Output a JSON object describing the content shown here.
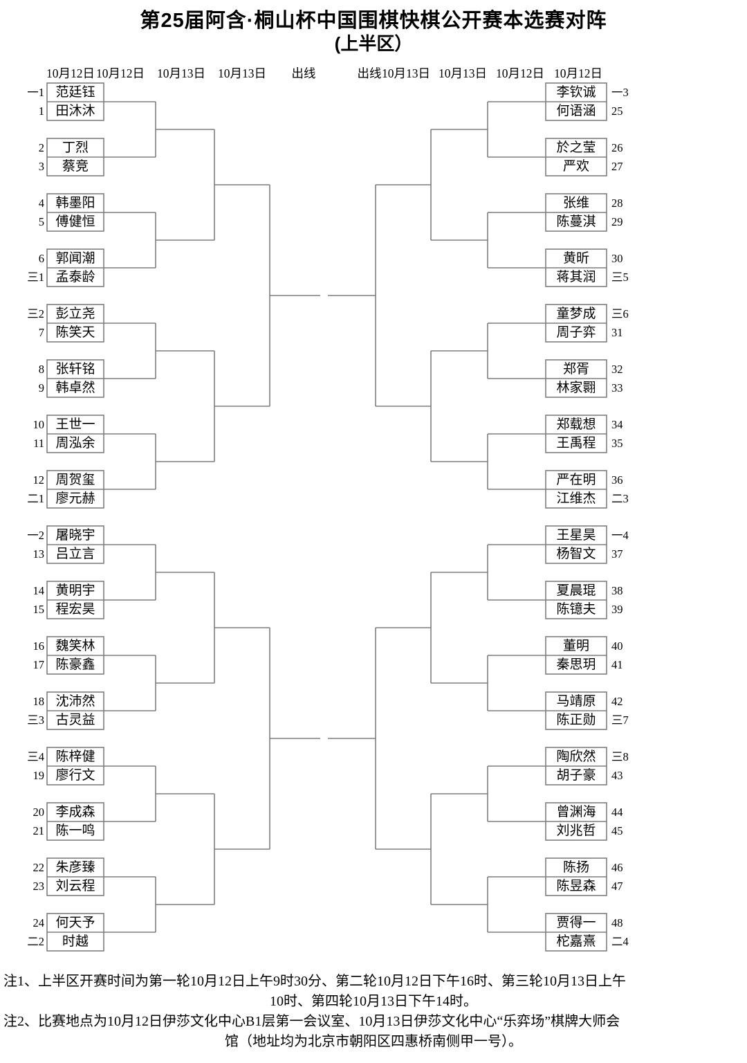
{
  "title": "第25届阿含·桐山杯中国围棋快棋公开赛本选赛对阵",
  "subtitle": "(上半区）",
  "round_headers": [
    "10月12日",
    "10月12日",
    "10月13日",
    "10月13日",
    "出线",
    "出线",
    "10月13日",
    "10月13日",
    "10月12日",
    "10月12日"
  ],
  "line_color": "#7d7d7d",
  "bracket": {
    "left": [
      {
        "players": [
          {
            "seed": "一1",
            "name": "范廷钰"
          },
          {
            "seed": "1",
            "name": "田沐沐"
          }
        ]
      },
      {
        "players": [
          {
            "seed": "2",
            "name": "丁烈"
          },
          {
            "seed": "3",
            "name": "蔡竞"
          }
        ]
      },
      {
        "players": [
          {
            "seed": "4",
            "name": "韩墨阳"
          },
          {
            "seed": "5",
            "name": "傅健恒"
          }
        ]
      },
      {
        "players": [
          {
            "seed": "6",
            "name": "郭闻潮"
          },
          {
            "seed": "三1",
            "name": "孟泰龄"
          }
        ]
      },
      {
        "players": [
          {
            "seed": "三2",
            "name": "彭立尧"
          },
          {
            "seed": "7",
            "name": "陈笑天"
          }
        ]
      },
      {
        "players": [
          {
            "seed": "8",
            "name": "张轩铭"
          },
          {
            "seed": "9",
            "name": "韩卓然"
          }
        ]
      },
      {
        "players": [
          {
            "seed": "10",
            "name": "王世一"
          },
          {
            "seed": "11",
            "name": "周泓余"
          }
        ]
      },
      {
        "players": [
          {
            "seed": "12",
            "name": "周贺玺"
          },
          {
            "seed": "二1",
            "name": "廖元赫"
          }
        ]
      },
      {
        "players": [
          {
            "seed": "一2",
            "name": "屠晓宇"
          },
          {
            "seed": "13",
            "name": "吕立言"
          }
        ]
      },
      {
        "players": [
          {
            "seed": "14",
            "name": "黄明宇"
          },
          {
            "seed": "15",
            "name": "程宏昊"
          }
        ]
      },
      {
        "players": [
          {
            "seed": "16",
            "name": "魏笑林"
          },
          {
            "seed": "17",
            "name": "陈豪鑫"
          }
        ]
      },
      {
        "players": [
          {
            "seed": "18",
            "name": "沈沛然"
          },
          {
            "seed": "三3",
            "name": "古灵益"
          }
        ]
      },
      {
        "players": [
          {
            "seed": "三4",
            "name": "陈梓健"
          },
          {
            "seed": "19",
            "name": "廖行文"
          }
        ]
      },
      {
        "players": [
          {
            "seed": "20",
            "name": "李成森"
          },
          {
            "seed": "21",
            "name": "陈一鸣"
          }
        ]
      },
      {
        "players": [
          {
            "seed": "22",
            "name": "朱彦臻"
          },
          {
            "seed": "23",
            "name": "刘云程"
          }
        ]
      },
      {
        "players": [
          {
            "seed": "24",
            "name": "何天予"
          },
          {
            "seed": "二2",
            "name": "时越"
          }
        ]
      }
    ],
    "right": [
      {
        "players": [
          {
            "seed": "一3",
            "name": "李钦诚"
          },
          {
            "seed": "25",
            "name": "何语涵"
          }
        ]
      },
      {
        "players": [
          {
            "seed": "26",
            "name": "於之莹"
          },
          {
            "seed": "27",
            "name": "严欢"
          }
        ]
      },
      {
        "players": [
          {
            "seed": "28",
            "name": "张维"
          },
          {
            "seed": "29",
            "name": "陈蔓淇"
          }
        ]
      },
      {
        "players": [
          {
            "seed": "30",
            "name": "黄昕"
          },
          {
            "seed": "三5",
            "name": "蒋其润"
          }
        ]
      },
      {
        "players": [
          {
            "seed": "三6",
            "name": "童梦成"
          },
          {
            "seed": "31",
            "name": "周子弈"
          }
        ]
      },
      {
        "players": [
          {
            "seed": "32",
            "name": "郑胥"
          },
          {
            "seed": "33",
            "name": "林家翾"
          }
        ]
      },
      {
        "players": [
          {
            "seed": "34",
            "name": "郑载想"
          },
          {
            "seed": "35",
            "name": "王禹程"
          }
        ]
      },
      {
        "players": [
          {
            "seed": "36",
            "name": "严在明"
          },
          {
            "seed": "二3",
            "name": "江维杰"
          }
        ]
      },
      {
        "players": [
          {
            "seed": "一4",
            "name": "王星昊"
          },
          {
            "seed": "37",
            "name": "杨智文"
          }
        ]
      },
      {
        "players": [
          {
            "seed": "38",
            "name": "夏晨琨"
          },
          {
            "seed": "39",
            "name": "陈镱夫"
          }
        ]
      },
      {
        "players": [
          {
            "seed": "40",
            "name": "董明"
          },
          {
            "seed": "41",
            "name": "秦思玥"
          }
        ]
      },
      {
        "players": [
          {
            "seed": "42",
            "name": "马靖原"
          },
          {
            "seed": "三7",
            "name": "陈正勋"
          }
        ]
      },
      {
        "players": [
          {
            "seed": "三8",
            "name": "陶欣然"
          },
          {
            "seed": "43",
            "name": "胡子豪"
          }
        ]
      },
      {
        "players": [
          {
            "seed": "44",
            "name": "曾渊海"
          },
          {
            "seed": "45",
            "name": "刘兆哲"
          }
        ]
      },
      {
        "players": [
          {
            "seed": "46",
            "name": "陈扬"
          },
          {
            "seed": "47",
            "name": "陈昱森"
          }
        ]
      },
      {
        "players": [
          {
            "seed": "48",
            "name": "贾得一"
          },
          {
            "seed": "二4",
            "name": "柁嘉熹"
          }
        ]
      }
    ]
  },
  "notes": [
    "注1、上半区开赛时间为第一轮10月12日上午9时30分、第二轮10月12日下午16时、第三轮10月13日上午",
    "10时、第四轮10月13日下午14时。",
    "注2、比赛地点为10月12日伊莎文化中心B1层第一会议室、10月13日伊莎文化中心“乐弈场”棋牌大师会",
    "馆（地址均为北京市朝阳区四惠桥南侧甲一号）。"
  ]
}
